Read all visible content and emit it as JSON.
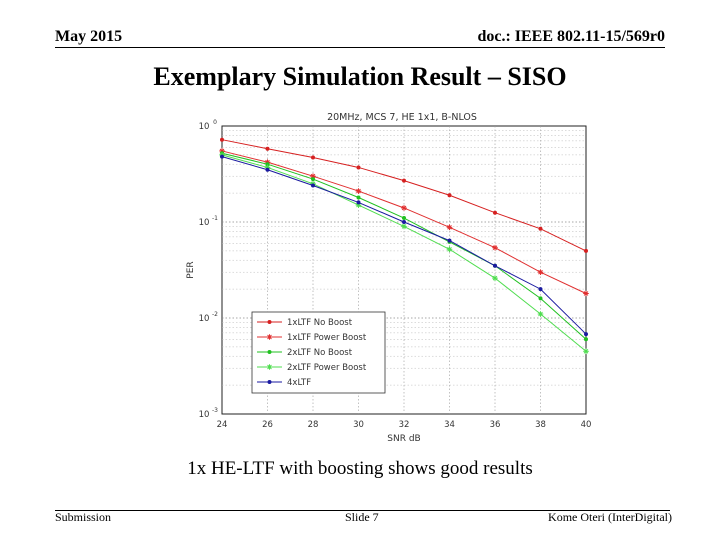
{
  "header": {
    "date": "May 2015",
    "doc": "doc.: IEEE 802.11-15/569r0"
  },
  "slide": {
    "title": "Exemplary Simulation Result – SISO",
    "caption": "1x HE-LTF with boosting shows good results"
  },
  "footer": {
    "left": "Submission",
    "center": "Slide 7",
    "right": "Kome Oteri (InterDigital)"
  },
  "chart_data": {
    "type": "line",
    "title": "20MHz, MCS 7, HE 1x1, B-NLOS",
    "xlabel": "SNR dB",
    "ylabel": "PER",
    "x": [
      24,
      26,
      28,
      30,
      32,
      34,
      36,
      38,
      40
    ],
    "xlim": [
      24,
      40
    ],
    "ylim": [
      0.001,
      1
    ],
    "yscale": "log",
    "ytick_labels": [
      "10",
      "10",
      "10",
      "10"
    ],
    "ytick_exponents": [
      "0",
      "-1",
      "-2",
      "-3"
    ],
    "grid": true,
    "legend_position": "bottom-left",
    "series": [
      {
        "name": "1xLTF No Boost",
        "color": "#d62020",
        "marker": "dot",
        "values": [
          0.72,
          0.58,
          0.47,
          0.37,
          0.27,
          0.19,
          0.125,
          0.085,
          0.05
        ]
      },
      {
        "name": "1xLTF Power Boost",
        "color": "#e03030",
        "marker": "star",
        "values": [
          0.55,
          0.42,
          0.3,
          0.21,
          0.14,
          0.088,
          0.054,
          0.03,
          0.018
        ]
      },
      {
        "name": "2xLTF No Boost",
        "color": "#20c020",
        "marker": "dot",
        "values": [
          0.52,
          0.4,
          0.28,
          0.18,
          0.11,
          0.062,
          0.035,
          0.016,
          0.006
        ]
      },
      {
        "name": "2xLTF Power Boost",
        "color": "#50dd50",
        "marker": "star",
        "values": [
          0.5,
          0.37,
          0.25,
          0.15,
          0.09,
          0.052,
          0.026,
          0.011,
          0.0045
        ]
      },
      {
        "name": "4xLTF",
        "color": "#1a1aa0",
        "marker": "dot",
        "values": [
          0.48,
          0.35,
          0.24,
          0.16,
          0.1,
          0.064,
          0.035,
          0.02,
          0.0068
        ]
      }
    ]
  }
}
